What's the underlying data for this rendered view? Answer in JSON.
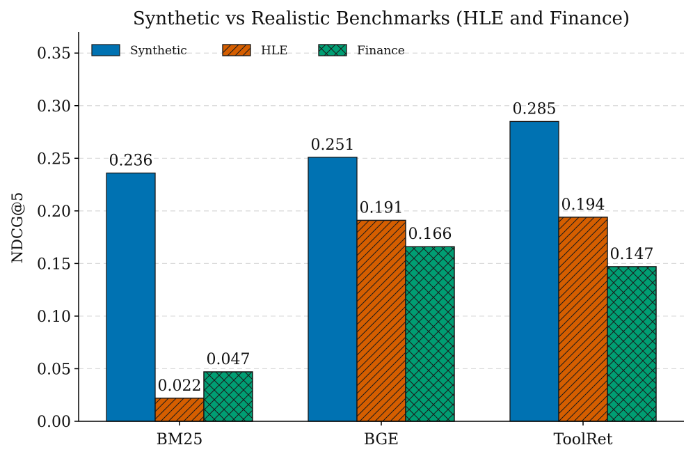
{
  "colors": {
    "synthetic": "#0072B2",
    "hle": "#D55E00",
    "finance": "#009E73"
  },
  "chart_data": {
    "type": "bar",
    "title": "Synthetic vs Realistic Benchmarks (HLE and Finance)",
    "xlabel": "",
    "ylabel": "NDCG@5",
    "categories": [
      "BM25",
      "BGE",
      "ToolRet"
    ],
    "ylim": [
      0,
      0.37
    ],
    "yticks": [
      0.0,
      0.05,
      0.1,
      0.15,
      0.2,
      0.25,
      0.3,
      0.35
    ],
    "ytick_labels": [
      "0.00",
      "0.05",
      "0.10",
      "0.15",
      "0.20",
      "0.25",
      "0.30",
      "0.35"
    ],
    "grid": "y, dashed",
    "legend": {
      "placement": "top-left",
      "columns": 3
    },
    "series": [
      {
        "name": "Synthetic",
        "values": [
          0.236,
          0.251,
          0.285
        ],
        "labels": [
          "0.236",
          "0.251",
          "0.285"
        ],
        "color": "#0072B2",
        "hatch": "none"
      },
      {
        "name": "HLE",
        "values": [
          0.022,
          0.191,
          0.194
        ],
        "labels": [
          "0.022",
          "0.191",
          "0.194"
        ],
        "color": "#D55E00",
        "hatch": "diagonal"
      },
      {
        "name": "Finance",
        "values": [
          0.047,
          0.166,
          0.147
        ],
        "labels": [
          "0.047",
          "0.166",
          "0.147"
        ],
        "color": "#009E73",
        "hatch": "cross"
      }
    ]
  }
}
